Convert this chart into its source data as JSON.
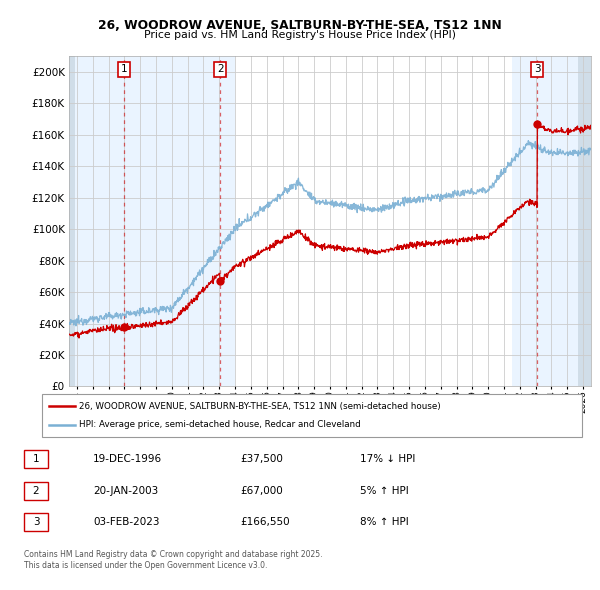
{
  "title_line1": "26, WOODROW AVENUE, SALTBURN-BY-THE-SEA, TS12 1NN",
  "title_line2": "Price paid vs. HM Land Registry's House Price Index (HPI)",
  "legend_line1": "26, WOODROW AVENUE, SALTBURN-BY-THE-SEA, TS12 1NN (semi-detached house)",
  "legend_line2": "HPI: Average price, semi-detached house, Redcar and Cleveland",
  "footnote1": "Contains HM Land Registry data © Crown copyright and database right 2025.",
  "footnote2": "This data is licensed under the Open Government Licence v3.0.",
  "transactions": [
    {
      "num": 1,
      "date_label": "19-DEC-1996",
      "price": 37500,
      "hpi_rel": "17% ↓ HPI",
      "year": 1996.97
    },
    {
      "num": 2,
      "date_label": "20-JAN-2003",
      "price": 67000,
      "hpi_rel": "5% ↑ HPI",
      "year": 2003.05
    },
    {
      "num": 3,
      "date_label": "03-FEB-2023",
      "price": 166550,
      "hpi_rel": "8% ↑ HPI",
      "year": 2023.09
    }
  ],
  "xmin": 1993.5,
  "xmax": 2026.5,
  "ymin": 0,
  "ymax": 210000,
  "yticks": [
    0,
    20000,
    40000,
    60000,
    80000,
    100000,
    120000,
    140000,
    160000,
    180000,
    200000
  ],
  "xticks": [
    1994,
    1995,
    1996,
    1997,
    1998,
    1999,
    2000,
    2001,
    2002,
    2003,
    2004,
    2005,
    2006,
    2007,
    2008,
    2009,
    2010,
    2011,
    2012,
    2013,
    2014,
    2015,
    2016,
    2017,
    2018,
    2019,
    2020,
    2021,
    2022,
    2023,
    2024,
    2025,
    2026
  ],
  "price_color": "#cc0000",
  "hpi_color": "#7ab0d4",
  "bg_color": "#ffffff",
  "shading_color": "#ddeeff",
  "hatch_color": "#d0dde8",
  "grid_color": "#cccccc",
  "spine_color": "#aaaaaa"
}
